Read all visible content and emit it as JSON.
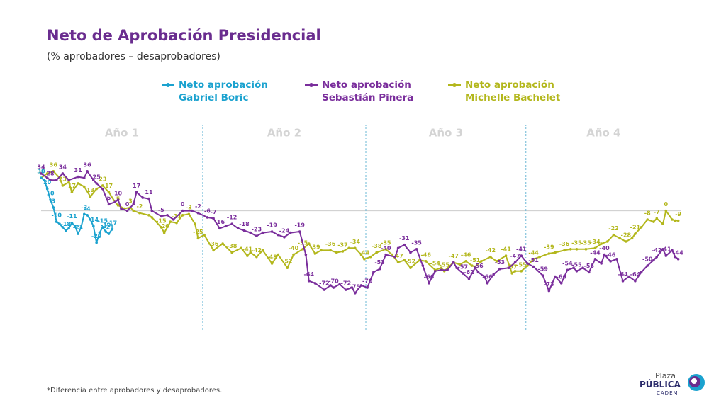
{
  "chart_data": {
    "type": "line",
    "title": "Neto de Aprobación Presidencial",
    "subtitle": "(% aprobadores – desaprobadores)",
    "footnote": "*Diferencia entre aprobadores y desaprobadores.",
    "logo": {
      "top": "Plaza",
      "middle": "PÚBLICA",
      "bottom": "CADEM"
    },
    "periods": [
      "Año 1",
      "Año 2",
      "Año 3",
      "Año 4"
    ],
    "period_bounds": [
      0,
      52.5,
      105.5,
      157.5,
      208
    ],
    "reference_line": 0,
    "xlim": [
      0,
      208
    ],
    "ylim": [
      -110,
      63
    ],
    "series": [
      {
        "name": "Neto aprobación Michelle Bachelet",
        "color": "#b3b71c",
        "x": [
          0,
          2,
          4,
          6,
          7,
          9,
          10,
          12,
          14,
          16,
          18,
          20,
          22,
          24,
          25,
          27,
          29,
          30,
          32,
          35,
          36,
          39,
          40,
          42,
          44,
          46,
          48,
          50,
          51,
          53,
          56,
          59,
          62,
          65,
          67,
          68,
          70,
          72,
          75,
          77,
          80,
          82,
          85,
          87,
          89,
          91,
          94,
          96,
          98,
          100,
          102,
          104,
          105,
          107,
          109,
          112,
          114,
          116,
          118,
          120,
          123,
          125,
          128,
          130,
          131,
          134,
          136,
          138,
          140,
          141,
          143,
          146,
          148,
          151,
          153,
          154,
          156,
          158,
          160,
          162,
          165,
          167,
          170,
          172,
          174,
          177,
          180,
          182,
          184,
          186,
          188,
          190,
          192,
          193,
          195,
          197,
          199,
          200,
          202,
          203,
          205,
          206,
          207
        ],
        "values": [
          30,
          34,
          36,
          30,
          23,
          26,
          17,
          25,
          22,
          13,
          20,
          23,
          17,
          8,
          5,
          2,
          3,
          0,
          -2,
          -4,
          -6,
          -15,
          -20,
          -10,
          -11,
          -4,
          -3,
          -12,
          -25,
          -22,
          -36,
          -30,
          -38,
          -34,
          -41,
          -38,
          -42,
          -36,
          -48,
          -40,
          -52,
          -40,
          -35,
          -30,
          -39,
          -36,
          -36,
          -38,
          -37,
          -34,
          -34,
          -40,
          -44,
          -42,
          -38,
          -35,
          -40,
          -47,
          -45,
          -52,
          -45,
          -46,
          -54,
          -52,
          -55,
          -47,
          -49,
          -46,
          -50,
          -51,
          -46,
          -42,
          -46,
          -41,
          -57,
          -55,
          -55,
          -50,
          -44,
          -42,
          -39,
          -38,
          -36,
          -35,
          -35,
          -35,
          -34,
          -30,
          -28,
          -22,
          -25,
          -28,
          -25,
          -21,
          -15,
          -8,
          -10,
          -7,
          -12,
          0,
          -8,
          -9,
          -9
        ],
        "value_labels": [
          "30",
          null,
          "36",
          null,
          "23",
          null,
          "17",
          null,
          null,
          "13",
          null,
          "23",
          "17",
          null,
          "5",
          null,
          "3",
          null,
          "-2",
          null,
          null,
          "-15",
          "-20",
          null,
          "-11",
          null,
          "-3",
          null,
          "-25",
          null,
          "-36",
          null,
          "-38",
          null,
          "-41",
          null,
          "-42",
          null,
          "-48",
          null,
          "-52",
          "-40",
          "-35",
          null,
          "-39",
          null,
          "-36",
          null,
          "-37",
          null,
          "-34",
          null,
          "-44",
          null,
          "-38",
          "-35",
          null,
          "-47",
          null,
          "-52",
          null,
          "-46",
          "-54",
          null,
          "-55",
          "-47",
          null,
          "-46",
          null,
          "-51",
          null,
          "-42",
          null,
          "-41",
          "-57",
          null,
          "-55",
          null,
          "-44",
          null,
          "-39",
          null,
          "-36",
          null,
          "-35",
          "-35",
          "-34",
          null,
          null,
          "-22",
          null,
          "-28",
          null,
          "-21",
          null,
          "-8",
          null,
          "-7",
          null,
          "0",
          null,
          null,
          "-9"
        ]
      },
      {
        "name": "Neto aprobación Sebastián Piñera",
        "color": "#7a2e9c",
        "x": [
          0,
          2,
          3,
          5,
          7,
          9,
          12,
          14,
          15,
          17,
          18,
          20,
          22,
          24,
          25,
          26,
          28,
          30,
          31,
          33,
          35,
          36,
          39,
          41,
          43,
          46,
          49,
          51,
          54,
          56,
          58,
          60,
          62,
          64,
          66,
          68,
          70,
          72,
          75,
          77,
          79,
          81,
          84,
          86,
          87,
          89,
          92,
          94,
          95,
          97,
          99,
          101,
          102,
          104,
          106,
          108,
          110,
          112,
          115,
          116,
          118,
          120,
          122,
          124,
          126,
          128,
          130,
          132,
          134,
          135,
          137,
          139,
          141,
          142,
          144,
          145,
          147,
          149,
          152,
          154,
          156,
          158,
          160,
          163,
          165,
          167,
          169,
          171,
          173,
          174,
          176,
          178,
          180,
          182,
          183,
          185,
          187,
          189,
          191,
          193,
          195,
          197,
          199,
          200,
          202,
          203,
          205,
          206,
          207
        ],
        "values": [
          34,
          30,
          28,
          28,
          34,
          28,
          31,
          30,
          36,
          28,
          25,
          20,
          6,
          8,
          10,
          2,
          0,
          6,
          17,
          12,
          11,
          0,
          -5,
          -4,
          -8,
          0,
          0,
          -2,
          -6,
          -7,
          -16,
          -14,
          -12,
          -16,
          -18,
          -20,
          -23,
          -20,
          -19,
          -22,
          -24,
          -20,
          -19,
          -40,
          -64,
          -66,
          -72,
          -68,
          -70,
          -67,
          -72,
          -70,
          -75,
          -68,
          -70,
          -56,
          -53,
          -40,
          -42,
          -34,
          -31,
          -38,
          -35,
          -50,
          -66,
          -55,
          -54,
          -54,
          -47,
          -52,
          -57,
          -62,
          -52,
          -56,
          -60,
          -66,
          -58,
          -53,
          -52,
          -47,
          -41,
          -48,
          -51,
          -59,
          -73,
          -60,
          -66,
          -54,
          -52,
          -55,
          -52,
          -56,
          -44,
          -48,
          -40,
          -46,
          -44,
          -64,
          -60,
          -64,
          -56,
          -50,
          -45,
          -42,
          -35,
          -41,
          -36,
          -42,
          -44
        ],
        "value_labels": [
          "34",
          null,
          "28",
          null,
          "34",
          null,
          "31",
          null,
          "36",
          null,
          "25",
          null,
          "6",
          null,
          "10",
          null,
          "0",
          null,
          "17",
          null,
          "11",
          null,
          "-5",
          null,
          null,
          "0",
          null,
          "-2",
          "-6",
          "-7",
          "-16",
          null,
          "-12",
          null,
          "-18",
          null,
          "-23",
          null,
          "-19",
          null,
          "-24",
          null,
          "-19",
          null,
          "-64",
          null,
          "-72",
          null,
          "-70",
          null,
          "-72",
          null,
          "-75",
          null,
          "-70",
          null,
          "-53",
          "-40",
          null,
          null,
          "-31",
          null,
          "-35",
          null,
          "-66",
          null,
          null,
          null,
          null,
          null,
          "-57",
          "-62",
          null,
          "-56",
          null,
          "-66",
          null,
          "-53",
          null,
          "-47",
          "-41",
          null,
          "-51",
          "-59",
          "-73",
          null,
          "-66",
          "-54",
          null,
          "-55",
          null,
          "-56",
          "-44",
          null,
          "-40",
          "-46",
          null,
          "-64",
          null,
          "-64",
          null,
          "-50",
          null,
          "-42",
          null,
          "-41",
          null,
          null,
          "-44"
        ]
      },
      {
        "name": "Neto aprobación Gabriel Boric",
        "color": "#1ba2cf",
        "x": [
          0,
          1,
          2,
          3,
          4,
          5,
          6,
          7,
          8,
          9,
          10,
          11,
          12,
          13,
          14,
          15,
          16,
          17,
          18,
          19,
          20,
          21,
          22,
          23
        ],
        "values": [
          30,
          28,
          20,
          10,
          3,
          -10,
          -12,
          -15,
          -18,
          -16,
          -11,
          -14,
          -21,
          -15,
          -3,
          -4,
          -8,
          -14,
          -29,
          -20,
          -15,
          -19,
          -21,
          -17
        ],
        "value_labels": [
          "30",
          null,
          "20",
          "10",
          "3",
          "-10",
          null,
          null,
          "-18",
          null,
          "-11",
          null,
          "-21",
          null,
          "-3",
          "-4",
          null,
          "-14",
          "-29",
          null,
          "-15",
          "-19",
          "-21",
          "-17"
        ]
      }
    ]
  }
}
